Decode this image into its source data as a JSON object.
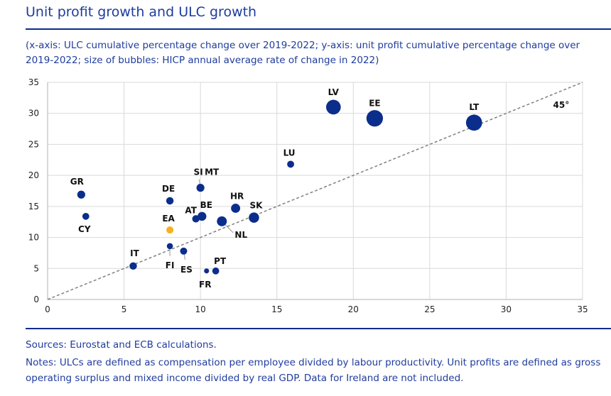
{
  "header": {
    "title": "Unit profit growth and ULC growth",
    "subtitle": "(x-axis: ULC cumulative percentage change over 2019-2022; y-axis: unit profit cumulative percentage change over 2019-2022; size of bubbles: HICP annual average rate of change in 2022)"
  },
  "footer": {
    "sources": "Sources: Eurostat and ECB calculations.",
    "notes": "Notes: ULCs are defined as compensation per employee divided by labour productivity. Unit profits are defined as gross operating surplus and mixed income divided by real GDP. Data for Ireland are not included."
  },
  "colors": {
    "bubble": "#0b2d8c",
    "highlight": "#f5b21d",
    "grid": "#d9d9d9",
    "line": "#808080"
  },
  "chart_data": {
    "type": "scatter",
    "title": "Unit profit growth and ULC growth",
    "xlim": [
      0,
      35
    ],
    "ylim": [
      0,
      35
    ],
    "xticks": [
      0,
      5,
      10,
      15,
      20,
      25,
      30,
      35
    ],
    "yticks": [
      0,
      5,
      10,
      15,
      20,
      25,
      30,
      35
    ],
    "reference_line_label": "45°",
    "points": [
      {
        "label": "LV",
        "x": 18.7,
        "y": 31.0,
        "size": 17.2
      },
      {
        "label": "EE",
        "x": 21.4,
        "y": 29.2,
        "size": 19.4
      },
      {
        "label": "LT",
        "x": 27.9,
        "y": 28.5,
        "size": 18.9
      },
      {
        "label": "LU",
        "x": 15.9,
        "y": 21.8,
        "size": 8.2
      },
      {
        "label": "SI",
        "x": 10.0,
        "y": 18.0,
        "size": 9.3
      },
      {
        "label": "MT",
        "x": 10.0,
        "y": 18.0,
        "size": 6.1
      },
      {
        "label": "GR",
        "x": 2.2,
        "y": 16.9,
        "size": 9.3
      },
      {
        "label": "DE",
        "x": 8.0,
        "y": 15.9,
        "size": 8.7
      },
      {
        "label": "HR",
        "x": 12.3,
        "y": 14.7,
        "size": 10.7
      },
      {
        "label": "SK",
        "x": 13.5,
        "y": 13.2,
        "size": 12.1
      },
      {
        "label": "CY",
        "x": 2.5,
        "y": 13.4,
        "size": 8.1
      },
      {
        "label": "AT",
        "x": 9.7,
        "y": 13.0,
        "size": 8.6
      },
      {
        "label": "BE",
        "x": 10.1,
        "y": 13.4,
        "size": 10.3
      },
      {
        "label": "NL",
        "x": 11.4,
        "y": 12.6,
        "size": 11.6
      },
      {
        "label": "EA",
        "x": 8.0,
        "y": 11.2,
        "size": 8.4
      },
      {
        "label": "FI",
        "x": 8.0,
        "y": 8.6,
        "size": 7.2
      },
      {
        "label": "ES",
        "x": 8.9,
        "y": 7.8,
        "size": 8.3
      },
      {
        "label": "IT",
        "x": 5.6,
        "y": 5.4,
        "size": 8.7
      },
      {
        "label": "PT",
        "x": 11.0,
        "y": 4.6,
        "size": 8.1
      },
      {
        "label": "FR",
        "x": 10.4,
        "y": 4.6,
        "size": 5.9
      }
    ]
  }
}
